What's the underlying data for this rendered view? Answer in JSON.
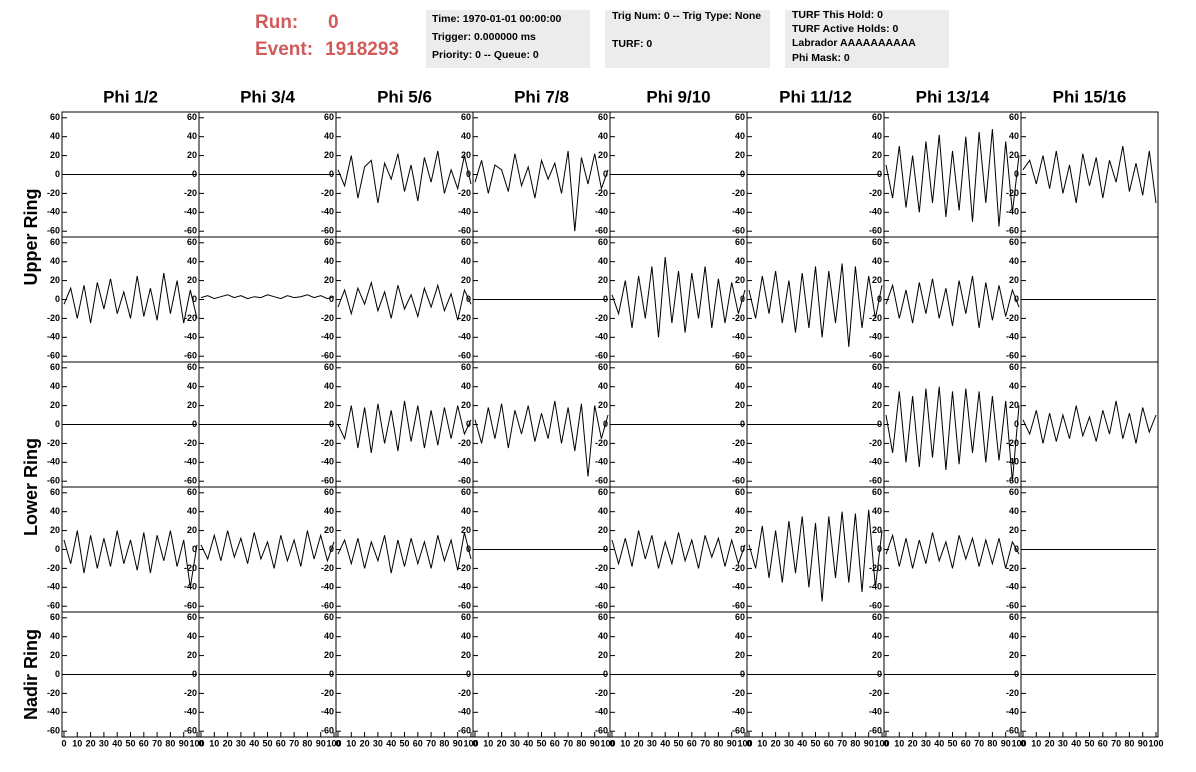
{
  "header": {
    "run": {
      "label": "Run:",
      "value": 0
    },
    "event": {
      "label": "Event:",
      "value": 1918293
    },
    "boxes": [
      [
        "Time: 1970-01-01 00:00:00",
        "Trigger: 0.000000 ms",
        "Priority: 0 -- Queue: 0"
      ],
      [
        "Trig Num: 0 -- Trig Type: None",
        "TURF: 0"
      ],
      [
        "TURF This Hold: 0",
        "TURF Active Holds: 0",
        "Labrador AAAAAAAAAA",
        "Phi Mask: 0"
      ]
    ]
  },
  "columns": [
    "Phi 1/2",
    "Phi 3/4",
    "Phi 5/6",
    "Phi 7/8",
    "Phi 9/10",
    "Phi 11/12",
    "Phi 13/14",
    "Phi 15/16"
  ],
  "ring_labels": [
    "Upper Ring",
    "Lower Ring",
    "Nadir Ring"
  ],
  "xlim": [
    0,
    100
  ],
  "xticks": [
    0,
    10,
    20,
    30,
    40,
    50,
    60,
    70,
    80,
    90,
    100
  ],
  "ylim": [
    -64,
    64
  ],
  "yticks": [
    -60,
    -40,
    -20,
    0,
    20,
    40,
    60
  ],
  "x": [
    0,
    5,
    10,
    15,
    20,
    25,
    30,
    35,
    40,
    45,
    50,
    55,
    60,
    65,
    70,
    75,
    80,
    85,
    90,
    95,
    100
  ],
  "panels": [
    [
      [
        0,
        0,
        0,
        0,
        0,
        0,
        0,
        0,
        0,
        0,
        0,
        0,
        0,
        0,
        0,
        0,
        0,
        0,
        0,
        0,
        0
      ],
      [
        0,
        0,
        0,
        0,
        0,
        0,
        0,
        0,
        0,
        0,
        0,
        0,
        0,
        0,
        0,
        0,
        0,
        0,
        0,
        0,
        0
      ],
      [
        5,
        -12,
        20,
        -25,
        8,
        15,
        -30,
        12,
        -5,
        22,
        -18,
        10,
        -28,
        18,
        -8,
        25,
        -20,
        5,
        -15,
        20,
        -10
      ],
      [
        -8,
        15,
        -20,
        10,
        5,
        -18,
        22,
        -12,
        8,
        -25,
        15,
        -5,
        12,
        -20,
        25,
        -60,
        18,
        -10,
        22,
        -15,
        5
      ],
      [
        0,
        0,
        0,
        0,
        0,
        0,
        0,
        0,
        0,
        0,
        0,
        0,
        0,
        0,
        0,
        0,
        0,
        0,
        0,
        0,
        0
      ],
      [
        0,
        0,
        0,
        0,
        0,
        0,
        0,
        0,
        0,
        0,
        0,
        0,
        0,
        0,
        0,
        0,
        0,
        0,
        0,
        0,
        0
      ],
      [
        10,
        -25,
        30,
        -35,
        20,
        -40,
        35,
        -30,
        42,
        -45,
        25,
        -38,
        40,
        -50,
        45,
        -30,
        48,
        -55,
        35,
        -40,
        20
      ],
      [
        5,
        15,
        -10,
        20,
        -15,
        25,
        -20,
        10,
        -30,
        22,
        -12,
        18,
        -25,
        15,
        -8,
        30,
        -18,
        12,
        -22,
        25,
        -30
      ]
    ],
    [
      [
        -5,
        12,
        -20,
        15,
        -25,
        18,
        -10,
        22,
        -15,
        8,
        -20,
        25,
        -18,
        12,
        -22,
        28,
        -15,
        20,
        -25,
        10,
        -20
      ],
      [
        2,
        4,
        1,
        3,
        5,
        2,
        4,
        1,
        3,
        2,
        5,
        3,
        1,
        4,
        2,
        3,
        5,
        2,
        4,
        1,
        3
      ],
      [
        -8,
        10,
        -15,
        12,
        -5,
        18,
        -12,
        8,
        -20,
        15,
        -10,
        5,
        -18,
        12,
        -8,
        15,
        -12,
        6,
        -22,
        10,
        -5
      ],
      [
        0,
        0,
        0,
        0,
        0,
        0,
        0,
        0,
        0,
        0,
        0,
        0,
        0,
        0,
        0,
        0,
        0,
        0,
        0,
        0,
        0
      ],
      [
        5,
        -15,
        20,
        -30,
        25,
        -20,
        35,
        -40,
        45,
        -25,
        30,
        -35,
        28,
        -20,
        35,
        -30,
        22,
        -25,
        18,
        -15,
        10
      ],
      [
        10,
        -20,
        25,
        -15,
        30,
        -25,
        20,
        -35,
        28,
        -30,
        35,
        -40,
        30,
        -25,
        38,
        -50,
        35,
        -30,
        25,
        -20,
        15
      ],
      [
        -5,
        15,
        -20,
        10,
        -25,
        18,
        -15,
        22,
        -20,
        12,
        -28,
        20,
        -15,
        25,
        -30,
        18,
        -22,
        15,
        -18,
        10,
        -8
      ],
      [
        0,
        0,
        0,
        0,
        0,
        0,
        0,
        0,
        0,
        0,
        0,
        0,
        0,
        0,
        0,
        0,
        0,
        0,
        0,
        0,
        0
      ]
    ],
    [
      [
        0,
        0,
        0,
        0,
        0,
        0,
        0,
        0,
        0,
        0,
        0,
        0,
        0,
        0,
        0,
        0,
        0,
        0,
        0,
        0,
        0
      ],
      [
        0,
        0,
        0,
        0,
        0,
        0,
        0,
        0,
        0,
        0,
        0,
        0,
        0,
        0,
        0,
        0,
        0,
        0,
        0,
        0,
        0
      ],
      [
        0,
        -15,
        20,
        -25,
        18,
        -30,
        22,
        -20,
        15,
        -28,
        25,
        -18,
        20,
        -25,
        15,
        -22,
        18,
        -15,
        20,
        -10,
        5
      ],
      [
        5,
        -20,
        18,
        -15,
        22,
        -25,
        15,
        -10,
        20,
        -18,
        12,
        -15,
        25,
        -20,
        18,
        -28,
        22,
        -55,
        20,
        -15,
        10
      ],
      [
        0,
        0,
        0,
        0,
        0,
        0,
        0,
        0,
        0,
        0,
        0,
        0,
        0,
        0,
        0,
        0,
        0,
        0,
        0,
        0,
        0
      ],
      [
        0,
        0,
        0,
        0,
        0,
        0,
        0,
        0,
        0,
        0,
        0,
        0,
        0,
        0,
        0,
        0,
        0,
        0,
        0,
        0,
        0
      ],
      [
        10,
        -30,
        35,
        -40,
        30,
        -45,
        38,
        -35,
        40,
        -48,
        35,
        -42,
        38,
        -30,
        35,
        -40,
        30,
        -38,
        25,
        -60,
        20
      ],
      [
        5,
        -10,
        15,
        -20,
        12,
        -18,
        10,
        -15,
        20,
        -12,
        8,
        -18,
        15,
        -10,
        25,
        -15,
        12,
        -20,
        18,
        -8,
        10
      ]
    ],
    [
      [
        10,
        -15,
        20,
        -25,
        15,
        -20,
        12,
        -18,
        20,
        -15,
        10,
        -22,
        18,
        -25,
        15,
        -12,
        20,
        -18,
        10,
        -40,
        5
      ],
      [
        5,
        -10,
        15,
        -12,
        20,
        -8,
        12,
        -15,
        18,
        -10,
        8,
        -20,
        15,
        -12,
        10,
        -18,
        20,
        -10,
        15,
        -12,
        8
      ],
      [
        -5,
        10,
        -15,
        12,
        -20,
        8,
        -12,
        15,
        -25,
        10,
        -18,
        12,
        -15,
        8,
        -20,
        15,
        -12,
        10,
        -22,
        18,
        -10
      ],
      [
        0,
        0,
        0,
        0,
        0,
        0,
        0,
        0,
        0,
        0,
        0,
        0,
        0,
        0,
        0,
        0,
        0,
        0,
        0,
        0,
        0
      ],
      [
        10,
        -15,
        12,
        -18,
        20,
        -10,
        15,
        -20,
        8,
        -15,
        18,
        -12,
        10,
        -20,
        15,
        -8,
        12,
        -18,
        10,
        -15,
        5
      ],
      [
        5,
        -20,
        25,
        -30,
        20,
        -35,
        30,
        -25,
        35,
        -40,
        28,
        -55,
        35,
        -30,
        40,
        -35,
        38,
        -45,
        42,
        -40,
        20
      ],
      [
        -5,
        15,
        -18,
        12,
        -20,
        10,
        -15,
        18,
        -12,
        8,
        -20,
        15,
        -10,
        12,
        -18,
        10,
        -15,
        12,
        -20,
        8,
        -5
      ],
      [
        0,
        0,
        0,
        0,
        0,
        0,
        0,
        0,
        0,
        0,
        0,
        0,
        0,
        0,
        0,
        0,
        0,
        0,
        0,
        0,
        0
      ]
    ],
    [
      [
        0,
        0,
        0,
        0,
        0,
        0,
        0,
        0,
        0,
        0,
        0,
        0,
        0,
        0,
        0,
        0,
        0,
        0,
        0,
        0,
        0
      ],
      [
        0,
        0,
        0,
        0,
        0,
        0,
        0,
        0,
        0,
        0,
        0,
        0,
        0,
        0,
        0,
        0,
        0,
        0,
        0,
        0,
        0
      ],
      [
        0,
        0,
        0,
        0,
        0,
        0,
        0,
        0,
        0,
        0,
        0,
        0,
        0,
        0,
        0,
        0,
        0,
        0,
        0,
        0,
        0
      ],
      [
        0,
        0,
        0,
        0,
        0,
        0,
        0,
        0,
        0,
        0,
        0,
        0,
        0,
        0,
        0,
        0,
        0,
        0,
        0,
        0,
        0
      ],
      [
        0,
        0,
        0,
        0,
        0,
        0,
        0,
        0,
        0,
        0,
        0,
        0,
        0,
        0,
        0,
        0,
        0,
        0,
        0,
        0,
        0
      ],
      [
        0,
        0,
        0,
        0,
        0,
        0,
        0,
        0,
        0,
        0,
        0,
        0,
        0,
        0,
        0,
        0,
        0,
        0,
        0,
        0,
        0
      ],
      [
        0,
        0,
        0,
        0,
        0,
        0,
        0,
        0,
        0,
        0,
        0,
        0,
        0,
        0,
        0,
        0,
        0,
        0,
        0,
        0,
        0
      ],
      [
        0,
        0,
        0,
        0,
        0,
        0,
        0,
        0,
        0,
        0,
        0,
        0,
        0,
        0,
        0,
        0,
        0,
        0,
        0,
        0,
        0
      ]
    ]
  ]
}
